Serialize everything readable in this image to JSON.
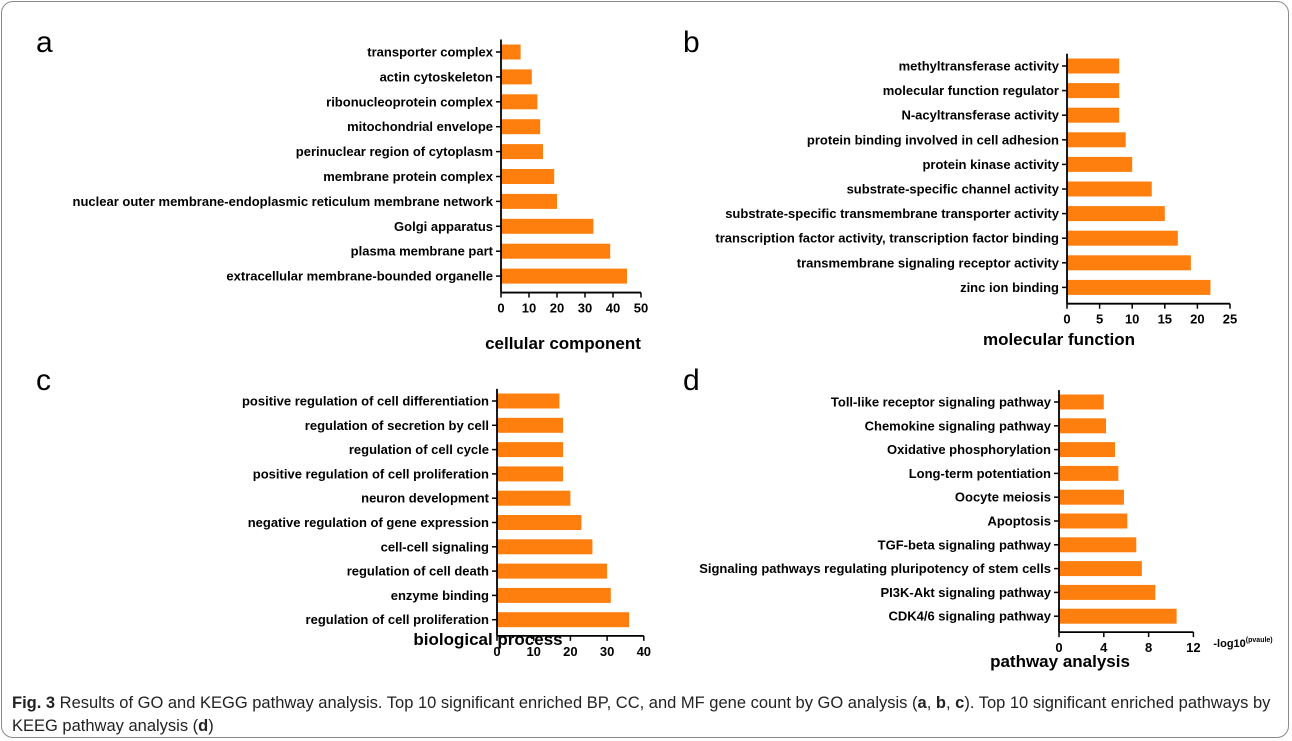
{
  "colors": {
    "bar": "#ff7f0e",
    "axis": "#000000",
    "frame": "#8a8a8a"
  },
  "chart_data": [
    {
      "type": "bar",
      "orientation": "horizontal",
      "panel": "a",
      "xlabel": "cellular component",
      "xlim": [
        0,
        50
      ],
      "xticks": [
        0,
        10,
        20,
        30,
        40,
        50
      ],
      "categories": [
        "transporter complex",
        "actin cytoskeleton",
        "ribonucleoprotein complex",
        "mitochondrial envelope",
        "perinuclear region of cytoplasm",
        "membrane protein complex",
        "nuclear outer membrane-endoplasmic reticulum membrane network",
        "Golgi apparatus",
        "plasma membrane part",
        "extracellular membrane-bounded organelle"
      ],
      "values": [
        7,
        11,
        13,
        14,
        15,
        19,
        20,
        33,
        39,
        45
      ]
    },
    {
      "type": "bar",
      "orientation": "horizontal",
      "panel": "b",
      "xlabel": "molecular function",
      "xlim": [
        0,
        25
      ],
      "xticks": [
        0,
        5,
        10,
        15,
        20,
        25
      ],
      "categories": [
        "methyltransferase activity",
        "molecular function regulator",
        "N-acyltransferase activity",
        "protein binding involved in cell adhesion",
        "protein kinase activity",
        "substrate-specific channel activity",
        "substrate-specific transmembrane transporter activity",
        "transcription factor activity, transcription factor binding",
        "transmembrane signaling receptor activity",
        "zinc ion binding"
      ],
      "values": [
        8,
        8,
        8,
        9,
        10,
        13,
        15,
        17,
        19,
        22
      ]
    },
    {
      "type": "bar",
      "orientation": "horizontal",
      "panel": "c",
      "xlabel": "biological process",
      "xlim": [
        0,
        40
      ],
      "xticks": [
        0,
        10,
        20,
        30,
        40
      ],
      "categories": [
        "positive regulation of cell differentiation",
        "regulation of secretion by cell",
        "regulation of cell cycle",
        "positive regulation of cell proliferation",
        "neuron development",
        "negative regulation of gene expression",
        "cell-cell signaling",
        "regulation of cell death",
        "enzyme binding",
        "regulation of cell proliferation"
      ],
      "values": [
        17,
        18,
        18,
        18,
        20,
        23,
        26,
        30,
        31,
        36
      ]
    },
    {
      "type": "bar",
      "orientation": "horizontal",
      "panel": "d",
      "xlabel": "pathway analysis",
      "x_unit_label": "-log10",
      "x_unit_sup": "(pvaule)",
      "xlim": [
        0,
        12
      ],
      "xticks": [
        0,
        4,
        8,
        12
      ],
      "categories": [
        "Toll-like receptor signaling pathway",
        "Chemokine signaling pathway",
        "Oxidative phosphorylation",
        "Long-term potentiation",
        "Oocyte meiosis",
        "Apoptosis",
        "TGF-beta signaling pathway",
        "Signaling pathways regulating pluripotency of stem cells",
        "PI3K-Akt signaling pathway",
        "CDK4/6 signaling pathway"
      ],
      "values": [
        4.0,
        4.2,
        5.0,
        5.3,
        5.8,
        6.1,
        6.9,
        7.4,
        8.6,
        10.5
      ]
    }
  ],
  "caption": {
    "fig_label": "Fig. 3",
    "text_1": " Results of GO and KEGG pathway analysis. Top 10 significant enriched BP, CC, and MF gene count by GO analysis (",
    "ref_a": "a",
    "sep_1": ", ",
    "ref_b": "b",
    "sep_2": ", ",
    "ref_c": "c",
    "text_2": "). Top 10 significant enriched pathways by KEEG pathway analysis (",
    "ref_d": "d",
    "text_3": ")"
  }
}
